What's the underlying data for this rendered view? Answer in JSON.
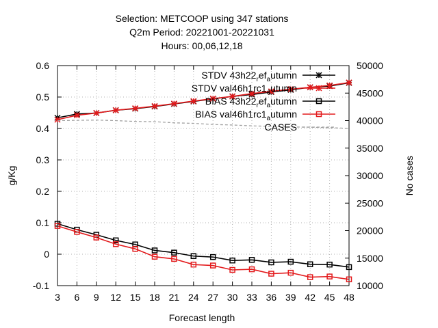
{
  "chart_data": {
    "type": "line",
    "title_lines": [
      "Selection: METCOOP using   347 stations",
      "Q2m   Period: 20221001-20221031",
      "Hours:  00,06,12,18"
    ],
    "xlabel": "Forecast length",
    "ylabel": "g/Kg",
    "y2label": "No cases",
    "x": [
      3,
      6,
      9,
      12,
      15,
      18,
      21,
      24,
      27,
      30,
      33,
      36,
      39,
      42,
      45,
      48
    ],
    "xlim": [
      3,
      48
    ],
    "ylim": [
      -0.1,
      0.6
    ],
    "y2lim": [
      10000,
      50000
    ],
    "xticks": [
      "3",
      "6",
      "9",
      "12",
      "15",
      "18",
      "21",
      "24",
      "27",
      "30",
      "33",
      "36",
      "39",
      "42",
      "45",
      "48"
    ],
    "yticks": [
      "-0.1",
      "0",
      "0.1",
      "0.2",
      "0.3",
      "0.4",
      "0.5",
      "0.6"
    ],
    "y2ticks": [
      "10000",
      "15000",
      "20000",
      "25000",
      "30000",
      "35000",
      "40000",
      "45000",
      "50000"
    ],
    "grid": true,
    "legend_position": "top-right",
    "series": [
      {
        "name": "STDV 43h22_ref_autumn",
        "legend": {
          "pre": "STDV 43h22",
          "sub1": "r",
          "mid": "ef",
          "sub2": "a",
          "post": "utumn"
        },
        "color": "#000000",
        "marker": "asterisk",
        "axis": "left",
        "values": [
          0.434,
          0.446,
          0.449,
          0.458,
          0.463,
          0.47,
          0.478,
          0.486,
          0.494,
          0.502,
          0.508,
          0.516,
          0.523,
          0.531,
          0.535,
          0.545
        ]
      },
      {
        "name": "STDV val46h1rc1_autumn",
        "legend": {
          "pre": "STDV val46h1rc1",
          "sub1": "",
          "mid": "",
          "sub2": "a",
          "post": "utumn"
        },
        "color": "#e31a1c",
        "marker": "asterisk",
        "axis": "left",
        "values": [
          0.428,
          0.442,
          0.449,
          0.458,
          0.464,
          0.471,
          0.479,
          0.487,
          0.495,
          0.502,
          0.511,
          0.518,
          0.525,
          0.531,
          0.537,
          0.546
        ]
      },
      {
        "name": "BIAS 43h22_ref_autumn",
        "legend": {
          "pre": "BIAS 43h22",
          "sub1": "r",
          "mid": "ef",
          "sub2": "a",
          "post": "utumn"
        },
        "color": "#000000",
        "marker": "square",
        "axis": "left",
        "values": [
          0.097,
          0.078,
          0.062,
          0.044,
          0.031,
          0.012,
          0.005,
          -0.006,
          -0.009,
          -0.02,
          -0.018,
          -0.026,
          -0.024,
          -0.032,
          -0.033,
          -0.041
        ]
      },
      {
        "name": "BIAS val46h1rc1_autumn",
        "legend": {
          "pre": "BIAS val46h1rc1",
          "sub1": "",
          "mid": "",
          "sub2": "a",
          "post": "utumn"
        },
        "color": "#e31a1c",
        "marker": "square",
        "axis": "left",
        "values": [
          0.09,
          0.071,
          0.053,
          0.032,
          0.017,
          -0.008,
          -0.015,
          -0.033,
          -0.036,
          -0.05,
          -0.048,
          -0.062,
          -0.059,
          -0.073,
          -0.071,
          -0.08
        ]
      },
      {
        "name": "CASES",
        "legend": {
          "pre": "CASES",
          "sub1": "",
          "mid": "",
          "sub2": "",
          "post": ""
        },
        "color": "#a0a0a0",
        "marker": "none",
        "dashed": true,
        "axis": "right",
        "values": [
          40000,
          40050,
          40100,
          40000,
          39850,
          39800,
          39600,
          39500,
          39300,
          39200,
          39050,
          38950,
          38850,
          38800,
          38700,
          38600
        ]
      }
    ]
  }
}
